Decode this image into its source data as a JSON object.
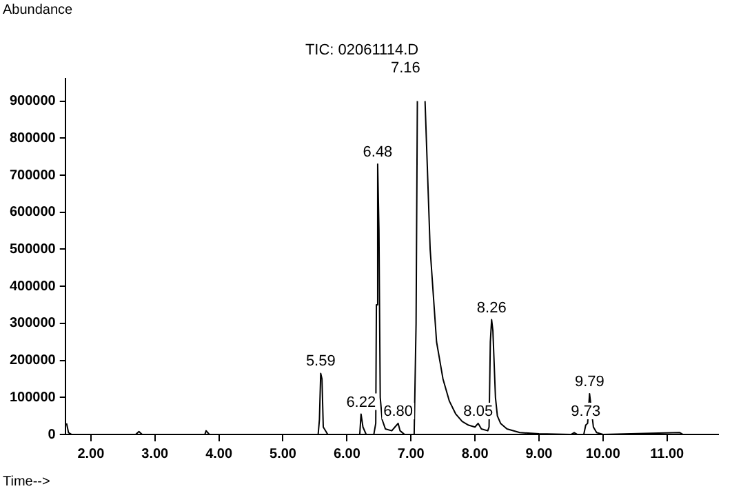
{
  "chart_data": {
    "type": "line",
    "title": "TIC: 02061114.D",
    "xlabel": "Time-->",
    "ylabel": "Abundance",
    "series": [
      {
        "color": "#000000",
        "x": [
          1.62,
          1.65,
          1.7,
          2.7,
          2.75,
          2.8,
          3.78,
          3.8,
          3.85,
          5.55,
          5.57,
          5.59,
          5.61,
          5.63,
          5.7,
          6.2,
          6.22,
          6.25,
          6.3,
          6.42,
          6.45,
          6.46,
          6.48,
          6.5,
          6.52,
          6.55,
          6.6,
          6.7,
          6.75,
          6.8,
          6.83,
          6.9,
          7.05,
          7.08,
          7.1,
          7.16,
          7.22,
          7.3,
          7.4,
          7.5,
          7.6,
          7.7,
          7.8,
          7.9,
          8.0,
          8.05,
          8.1,
          8.2,
          8.22,
          8.24,
          8.26,
          8.28,
          8.32,
          8.35,
          8.4,
          8.5,
          8.7,
          9.0,
          9.5,
          9.55,
          9.6,
          9.7,
          9.73,
          9.76,
          9.79,
          9.81,
          9.85,
          9.9,
          10.0,
          11.2,
          11.25,
          11.8
        ],
        "values": [
          30000,
          5000,
          0,
          0,
          8000,
          0,
          0,
          10000,
          0,
          0,
          40000,
          165000,
          150000,
          20000,
          0,
          0,
          55000,
          20000,
          0,
          0,
          30000,
          350000,
          730000,
          550000,
          100000,
          40000,
          15000,
          10000,
          20000,
          30000,
          10000,
          0,
          0,
          300000,
          900000,
          null,
          900000,
          500000,
          250000,
          150000,
          90000,
          55000,
          35000,
          25000,
          20000,
          30000,
          15000,
          10000,
          20000,
          250000,
          310000,
          280000,
          100000,
          50000,
          30000,
          15000,
          5000,
          2000,
          0,
          5000,
          0,
          0,
          25000,
          30000,
          110000,
          80000,
          20000,
          5000,
          0,
          5000,
          0,
          0
        ]
      }
    ],
    "annotations": [
      {
        "text": "5.59",
        "x": 5.59,
        "y": 165000
      },
      {
        "text": "6.22",
        "x": 6.22,
        "y": 55000
      },
      {
        "text": "6.48",
        "x": 6.48,
        "y": 730000
      },
      {
        "text": "6.80",
        "x": 6.8,
        "y": 30000
      },
      "7.16",
      {
        "text": "8.05",
        "x": 8.05,
        "y": 30000
      },
      {
        "text": "8.26",
        "x": 8.26,
        "y": 310000
      },
      {
        "text": "9.73",
        "x": 9.73,
        "y": 30000
      },
      {
        "text": "9.79",
        "x": 9.79,
        "y": 110000
      }
    ],
    "xlim": [
      1.6,
      11.8
    ],
    "xticks": [
      {
        "value": 2,
        "label": "2.00"
      },
      {
        "value": 3,
        "label": "3.00"
      },
      {
        "value": 4,
        "label": "4.00"
      },
      {
        "value": 5,
        "label": "5.00"
      },
      {
        "value": 6,
        "label": "6.00"
      },
      {
        "value": 7,
        "label": "7.00"
      },
      {
        "value": 8,
        "label": "8.00"
      },
      {
        "value": 9,
        "label": "9.00"
      },
      {
        "value": 10,
        "label": "10.00"
      },
      {
        "value": 11,
        "label": "11.00"
      }
    ],
    "ylim": [
      0,
      960000
    ],
    "yticks": [
      0,
      100000,
      200000,
      300000,
      400000,
      500000,
      600000,
      700000,
      800000,
      900000
    ],
    "grid": false,
    "legend": false,
    "marker": "none",
    "line_style": "solid"
  }
}
